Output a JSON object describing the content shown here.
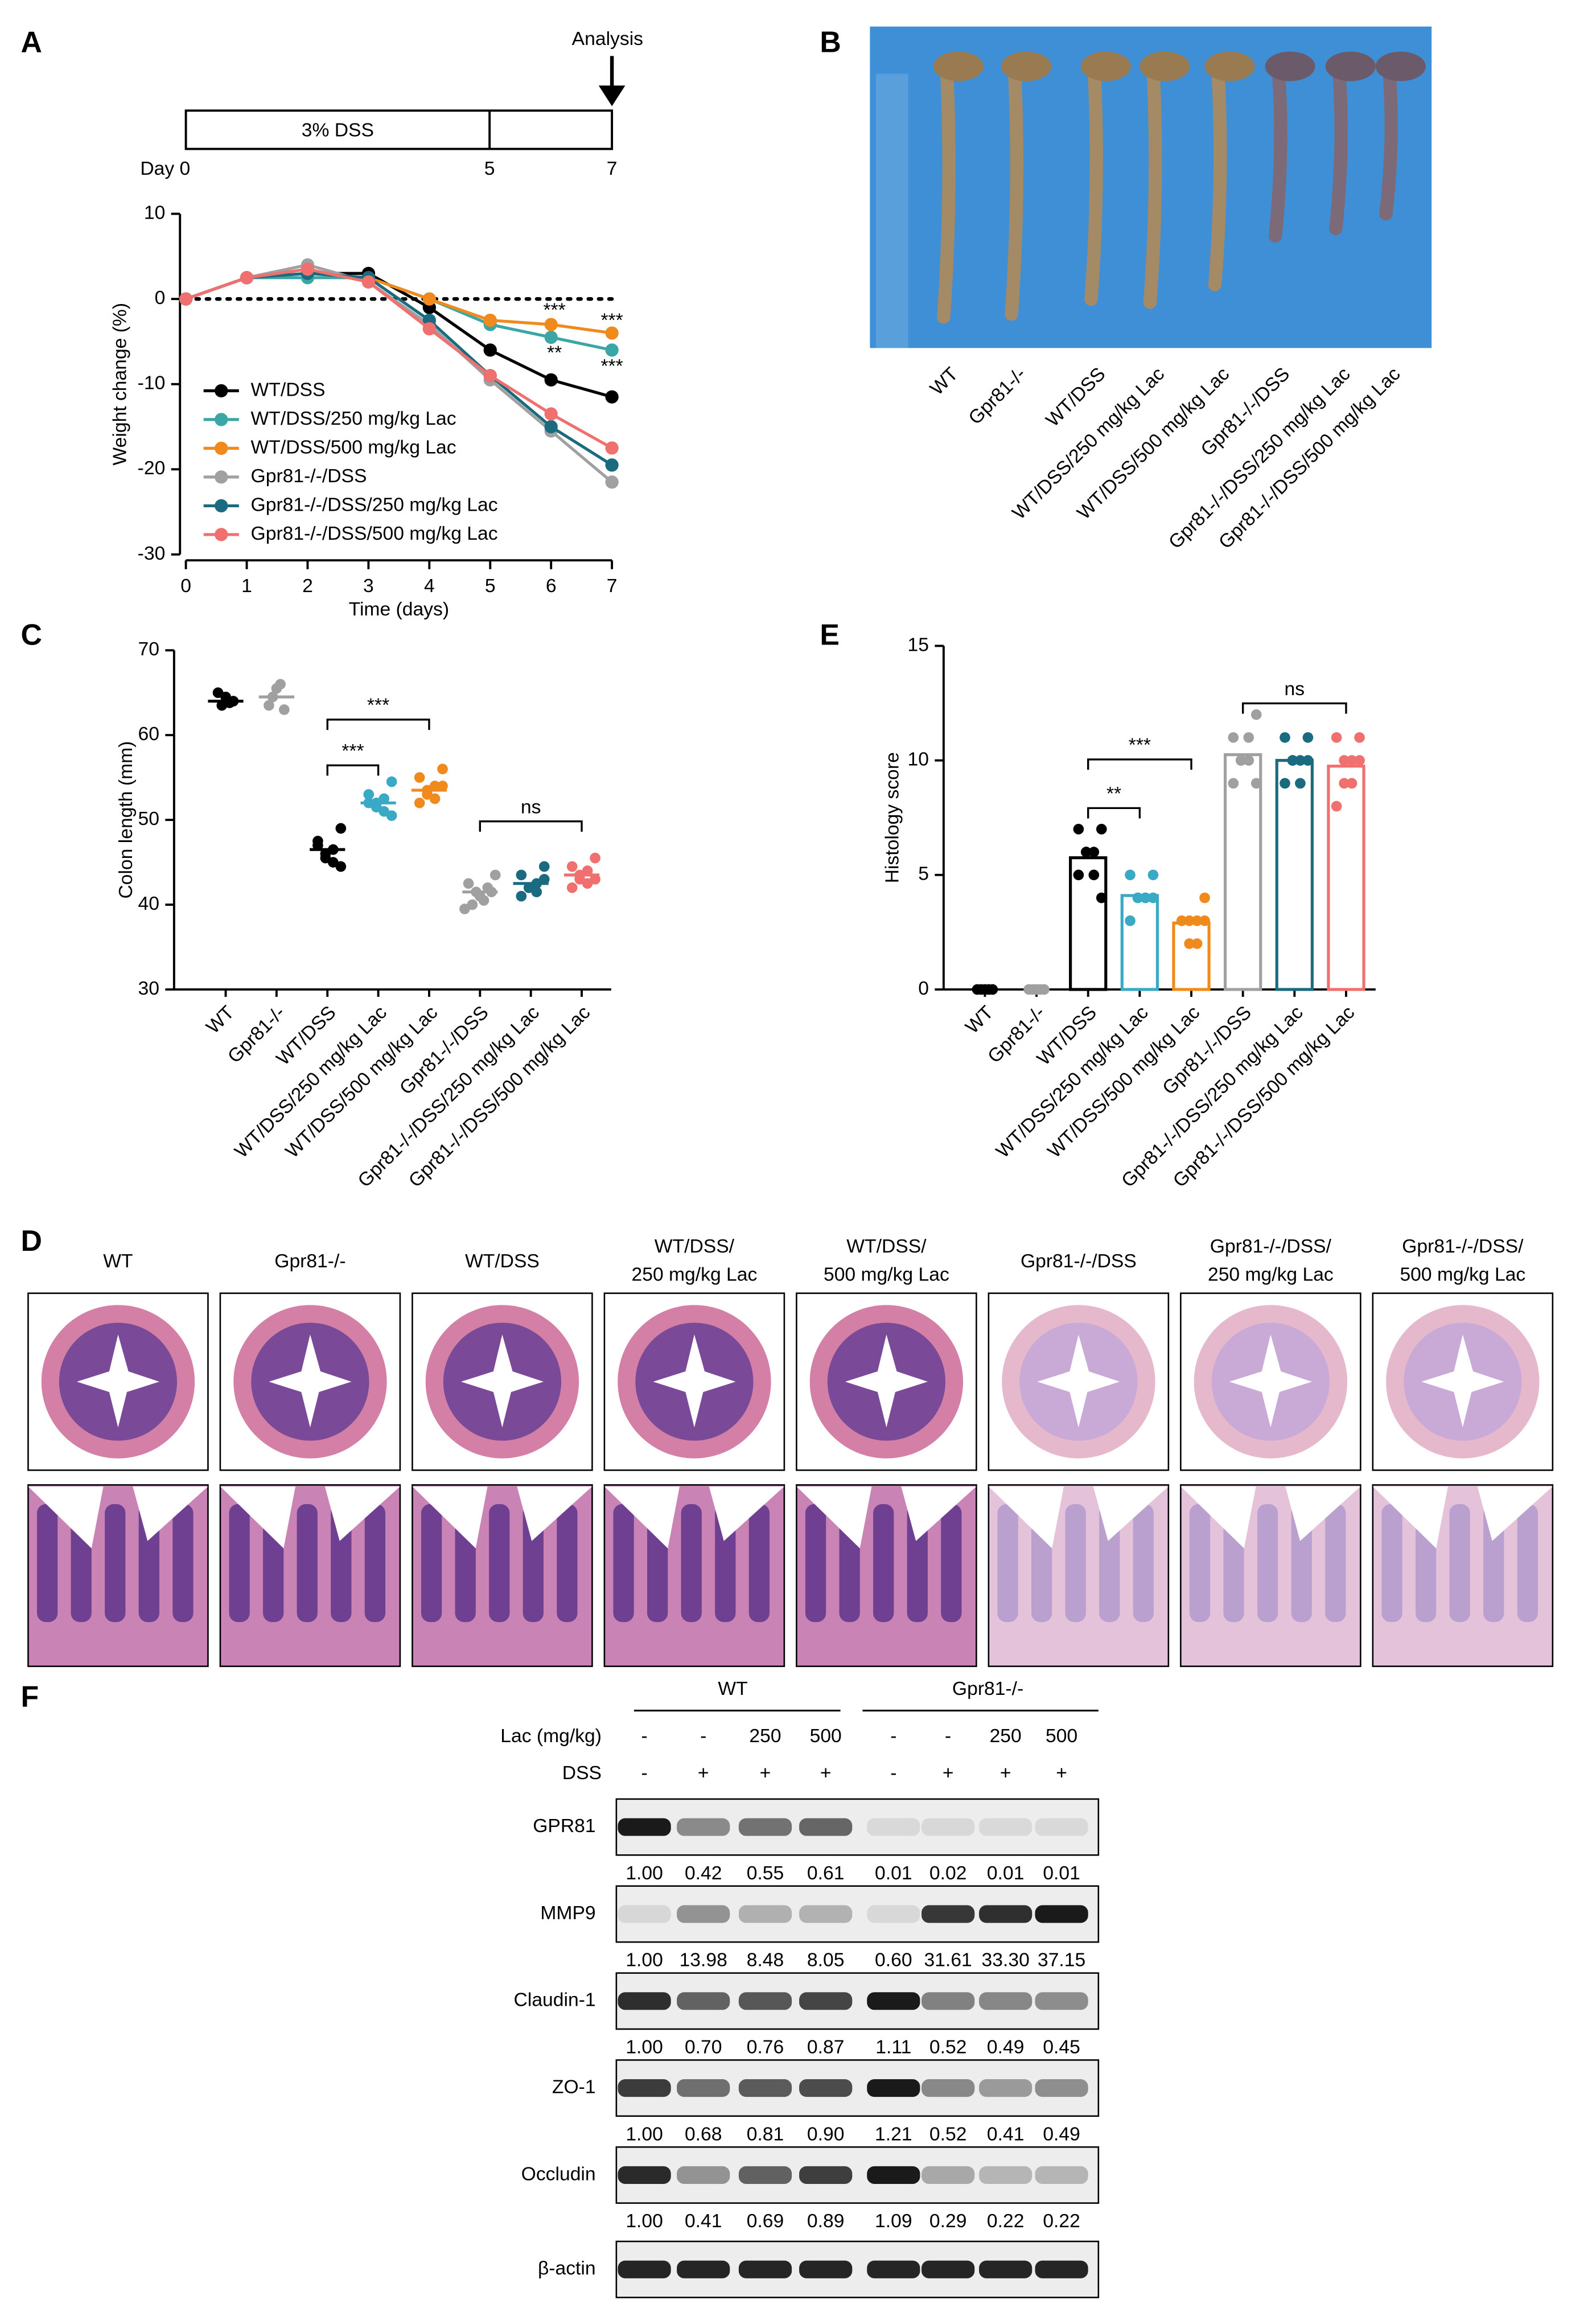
{
  "panel_labels": [
    "A",
    "B",
    "C",
    "D",
    "E",
    "F"
  ],
  "timeline": {
    "treatment": "3% DSS",
    "day_labels": [
      "Day 0",
      "5",
      "7"
    ],
    "arrow_label": "Analysis"
  },
  "chart_data": [
    {
      "type": "line",
      "xlabel": "Time (days)",
      "ylabel": "Weight change (%)",
      "x": [
        0,
        1,
        2,
        3,
        4,
        5,
        6,
        7
      ],
      "xlim": [
        0,
        7
      ],
      "xticks": [
        0,
        1,
        2,
        3,
        4,
        5,
        6,
        7
      ],
      "ylim": [
        -30,
        10
      ],
      "yticks": [
        -30,
        -20,
        -10,
        0,
        10
      ],
      "zero_line": true,
      "legend": "lower left",
      "series": [
        {
          "name": "WT/DSS",
          "color": "#000000",
          "values": [
            0,
            2.5,
            3,
            3,
            -1,
            -6,
            -9.5,
            -11.5
          ]
        },
        {
          "name": "WT/DSS/250 mg/kg Lac",
          "color": "#3aa6a6",
          "values": [
            0,
            2.5,
            2.5,
            2.5,
            0,
            -3,
            -4.5,
            -6
          ]
        },
        {
          "name": "WT/DSS/500 mg/kg Lac",
          "color": "#f08a1c",
          "values": [
            0,
            2.5,
            3,
            2.5,
            0,
            -2.5,
            -3,
            -4
          ]
        },
        {
          "name": "Gpr81-/-/DSS",
          "color": "#a0a0a0",
          "values": [
            0,
            2.5,
            4,
            2,
            -3,
            -9.5,
            -15.5,
            -21.5
          ]
        },
        {
          "name": "Gpr81-/-/DSS/250 mg/kg Lac",
          "color": "#1a6a80",
          "values": [
            0,
            2.5,
            3,
            2.5,
            -2.5,
            -9,
            -15,
            -19.5
          ]
        },
        {
          "name": "Gpr81-/-/DSS/500 mg/kg Lac",
          "color": "#f07070",
          "values": [
            0,
            2.5,
            3.5,
            2,
            -3.5,
            -9,
            -13.5,
            -17.5
          ]
        }
      ],
      "annotations": [
        "***",
        "***",
        "**",
        "***"
      ]
    },
    {
      "type": "dot",
      "ylabel": "Colon length (mm)",
      "ylim": [
        30,
        70
      ],
      "yticks": [
        30,
        40,
        50,
        60,
        70
      ],
      "categories": [
        "WT",
        "Gpr81-/-",
        "WT/DSS",
        "WT/DSS/250 mg/kg Lac",
        "WT/DSS/500 mg/kg Lac",
        "Gpr81-/-/DSS",
        "Gpr81-/-/DSS/250 mg/kg Lac",
        "Gpr81-/-/DSS/500 mg/kg Lac"
      ],
      "colors": [
        "#000000",
        "#a0a0a0",
        "#000000",
        "#39a9c6",
        "#f08a1c",
        "#a0a0a0",
        "#1a6a80",
        "#f07070"
      ],
      "values": [
        64,
        64.5,
        46.5,
        52,
        53.5,
        41.5,
        42.5,
        43.5
      ],
      "points": [
        [
          64,
          63.5,
          64.5,
          63.8,
          65
        ],
        [
          63,
          64.5,
          65.5,
          66,
          63.5
        ],
        [
          49,
          47.5,
          46.5,
          46,
          45.5,
          45,
          47,
          44.5
        ],
        [
          54.5,
          53,
          52.5,
          52,
          51.5,
          51,
          52,
          50.5
        ],
        [
          56,
          55,
          54,
          53.5,
          53,
          52.5,
          52,
          54
        ],
        [
          43.5,
          42.5,
          42,
          41.5,
          41,
          40.5,
          40,
          41.5,
          39.5
        ],
        [
          44.5,
          43.5,
          42.5,
          42,
          42,
          41.5,
          41,
          43
        ],
        [
          45.5,
          44.5,
          44,
          43.5,
          43,
          42.5,
          42,
          43
        ]
      ],
      "annotations": [
        "***",
        "***",
        "ns"
      ]
    },
    {
      "type": "bar",
      "ylabel": "Histology score",
      "ylim": [
        0,
        15
      ],
      "yticks": [
        0,
        5,
        10,
        15
      ],
      "categories": [
        "WT",
        "Gpr81-/-",
        "WT/DSS",
        "WT/DSS/250 mg/kg Lac",
        "WT/DSS/500 mg/kg Lac",
        "Gpr81-/-/DSS",
        "Gpr81-/-/DSS/250 mg/kg Lac",
        "Gpr81-/-/DSS/500 mg/kg Lac"
      ],
      "colors": [
        "#000000",
        "#a0a0a0",
        "#000000",
        "#39a9c6",
        "#f08a1c",
        "#a0a0a0",
        "#1a6a80",
        "#f07070"
      ],
      "values": [
        0,
        0,
        5.75,
        4.1,
        2.9,
        10.25,
        10,
        9.75
      ],
      "points": [
        [
          0,
          0,
          0,
          0,
          0
        ],
        [
          0,
          0,
          0,
          0,
          0
        ],
        [
          7,
          7,
          6,
          6,
          6,
          5,
          5,
          4
        ],
        [
          5,
          5,
          4,
          4,
          4,
          4,
          3,
          4
        ],
        [
          4,
          3,
          3,
          3,
          2,
          2,
          3,
          3
        ],
        [
          12,
          11,
          11,
          10,
          10,
          10,
          9,
          9
        ],
        [
          11,
          11,
          10,
          10,
          10,
          9,
          9,
          10
        ],
        [
          11,
          11,
          10,
          10,
          9,
          9,
          8,
          10
        ]
      ],
      "annotations": [
        "**",
        "***",
        "ns"
      ]
    }
  ],
  "photo": {
    "labels": [
      "WT",
      "Gpr81-/-",
      "WT/DSS",
      "WT/DSS/250 mg/kg Lac",
      "WT/DSS/500 mg/kg Lac",
      "Gpr81-/-/DSS",
      "Gpr81-/-/DSS/250 mg/kg Lac",
      "Gpr81-/-/DSS/500 mg/kg Lac"
    ]
  },
  "histology": {
    "headers": [
      [
        "WT"
      ],
      [
        "Gpr81-/-"
      ],
      [
        "WT/DSS"
      ],
      [
        "WT/DSS/",
        "250 mg/kg Lac"
      ],
      [
        "WT/DSS/",
        "500 mg/kg Lac"
      ],
      [
        "Gpr81-/-/DSS"
      ],
      [
        "Gpr81-/-/DSS/",
        "250 mg/kg Lac"
      ],
      [
        "Gpr81-/-/DSS/",
        "500 mg/kg Lac"
      ]
    ]
  },
  "western_blot": {
    "groups": [
      "WT",
      "Gpr81-/-"
    ],
    "row_headers": [
      "Lac (mg/kg)",
      "DSS"
    ],
    "lac": [
      "-",
      "-",
      "250",
      "500",
      "-",
      "-",
      "250",
      "500"
    ],
    "dss": [
      "-",
      "+",
      "+",
      "+",
      "-",
      "+",
      "+",
      "+"
    ],
    "bands": [
      {
        "name": "GPR81",
        "values": [
          "1.00",
          "0.42",
          "0.55",
          "0.61",
          "0.01",
          "0.02",
          "0.01",
          "0.01"
        ]
      },
      {
        "name": "MMP9",
        "values": [
          "1.00",
          "13.98",
          "8.48",
          "8.05",
          "0.60",
          "31.61",
          "33.30",
          "37.15"
        ]
      },
      {
        "name": "Claudin-1",
        "values": [
          "1.00",
          "0.70",
          "0.76",
          "0.87",
          "1.11",
          "0.52",
          "0.49",
          "0.45"
        ]
      },
      {
        "name": "ZO-1",
        "values": [
          "1.00",
          "0.68",
          "0.81",
          "0.90",
          "1.21",
          "0.52",
          "0.41",
          "0.49"
        ]
      },
      {
        "name": "Occludin",
        "values": [
          "1.00",
          "0.41",
          "0.69",
          "0.89",
          "1.09",
          "0.29",
          "0.22",
          "0.22"
        ]
      },
      {
        "name": "β-actin"
      }
    ]
  }
}
